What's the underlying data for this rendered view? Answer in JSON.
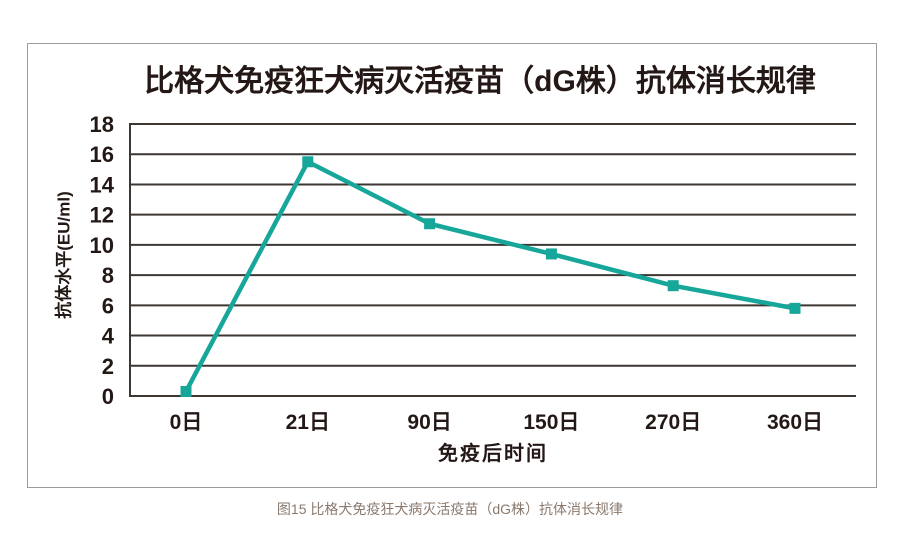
{
  "figure": {
    "caption": "图15 比格犬免疫狂犬病灭活疫苗（dG株）抗体消长规律"
  },
  "chart_data": {
    "type": "line",
    "title": "比格犬免疫狂犬病灭活疫苗（dG株）抗体消长规律",
    "xlabel": "免疫后时间",
    "ylabel": "抗体水平(EU/ml)",
    "categories": [
      "0日",
      "21日",
      "90日",
      "150日",
      "270日",
      "360日"
    ],
    "series": [
      {
        "name": "抗体水平",
        "values": [
          0.3,
          15.5,
          11.4,
          9.4,
          7.3,
          5.8
        ]
      }
    ],
    "ylim": [
      0,
      18
    ],
    "y_ticks": [
      0,
      2,
      4,
      6,
      8,
      10,
      12,
      14,
      16,
      18
    ],
    "grid": "horizontal-only",
    "legend": "none",
    "marker": "filled-square",
    "colors": {
      "line": "#17a69a",
      "grid": "#3d3734",
      "text": "#231815",
      "caption_text": "#8a796d",
      "border": "#9c9c9c",
      "background": "#ffffff"
    }
  }
}
